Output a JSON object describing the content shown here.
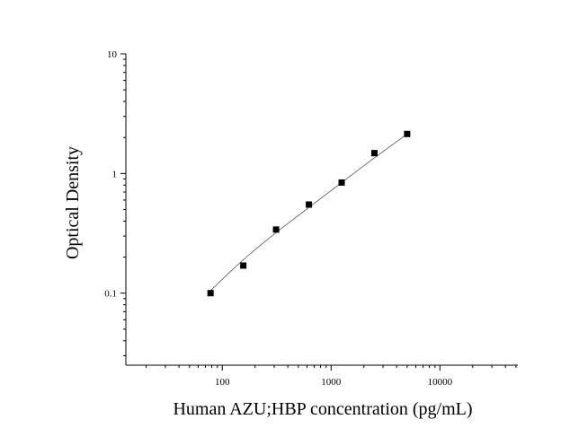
{
  "chart_data": {
    "type": "scatter",
    "title": "",
    "xlabel": "Human AZU;HBP concentration (pg/mL)",
    "ylabel": "Optical Density",
    "xscale": "log",
    "yscale": "log",
    "xlim": [
      13,
      52000
    ],
    "ylim": [
      0.025,
      10
    ],
    "x_ticks": [
      {
        "value": 100,
        "label": "100"
      },
      {
        "value": 1000,
        "label": "1000"
      },
      {
        "value": 10000,
        "label": "10000"
      }
    ],
    "y_ticks": [
      {
        "value": 0.1,
        "label": "0.1"
      },
      {
        "value": 1,
        "label": "1"
      },
      {
        "value": 10,
        "label": "10"
      }
    ],
    "grid": false,
    "legend": "none",
    "series": [
      {
        "x": [
          78,
          156,
          312,
          625,
          1250,
          2500,
          5000
        ],
        "y": [
          0.1,
          0.17,
          0.34,
          0.55,
          0.84,
          1.48,
          2.14
        ]
      }
    ],
    "fit_curve": {
      "x": [
        78,
        156,
        312,
        625,
        1250,
        2500,
        5000
      ],
      "y": [
        0.105,
        0.19,
        0.32,
        0.52,
        0.84,
        1.35,
        2.14
      ]
    }
  }
}
